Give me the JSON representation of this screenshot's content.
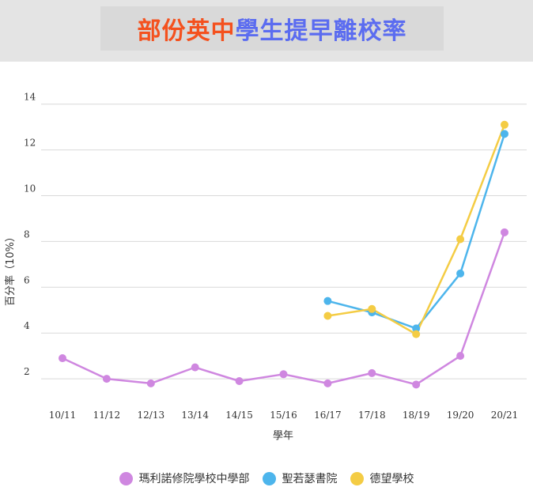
{
  "title": {
    "part1": "部份英中",
    "part2": "學生提早離校率"
  },
  "colors": {
    "title_orange": "#f4511e",
    "title_blue": "#5b6cf0",
    "series": [
      "#cf87e0",
      "#4db5ec",
      "#f4cc44"
    ]
  },
  "chart_data": {
    "type": "line",
    "title": "部份英中學生提早離校率",
    "xlabel": "學年",
    "ylabel": "百分率（10%）",
    "categories": [
      "10/11",
      "11/12",
      "12/13",
      "13/14",
      "14/15",
      "15/16",
      "16/17",
      "17/18",
      "18/19",
      "19/20",
      "20/21"
    ],
    "yticks": [
      2,
      4,
      6,
      8,
      10,
      12,
      14
    ],
    "ylim": [
      0,
      15
    ],
    "grid": true,
    "legend": "bottom",
    "series": [
      {
        "name": "瑪利諾修院學校中學部",
        "color": "#cf87e0",
        "values": [
          2.9,
          2.0,
          1.8,
          2.5,
          1.9,
          2.2,
          1.8,
          2.25,
          1.75,
          3.0,
          8.4
        ]
      },
      {
        "name": "聖若瑟書院",
        "color": "#4db5ec",
        "values": [
          null,
          null,
          null,
          null,
          null,
          null,
          5.4,
          4.9,
          4.2,
          6.6,
          12.7
        ]
      },
      {
        "name": "德望學校",
        "color": "#f4cc44",
        "values": [
          null,
          null,
          null,
          null,
          null,
          null,
          4.75,
          5.05,
          3.95,
          8.1,
          13.1
        ]
      }
    ]
  }
}
